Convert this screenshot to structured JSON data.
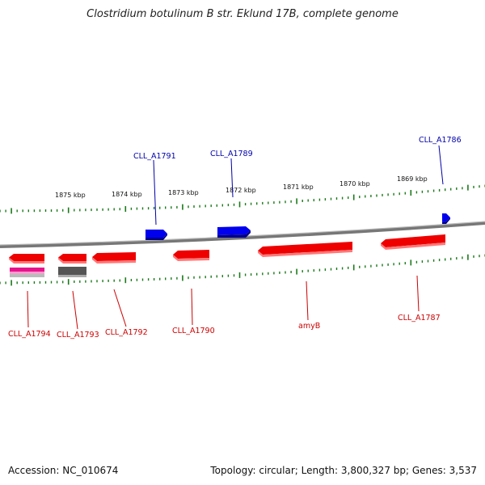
{
  "title": "Clostridium botulinum B str. Eklund 17B, complete genome",
  "footer": {
    "accession": "Accession: NC_010674",
    "info": "Topology: circular; Length: 3,800,327 bp; Genes: 3,537"
  },
  "colors": {
    "forward_gene": "#0000ee",
    "reverse_gene": "#ee0000",
    "backbone": "#888888",
    "ticks": "#1a7a1a",
    "forward_label": "#0000aa",
    "reverse_label": "#cc0000"
  },
  "scale_labels": [
    "1875 kbp",
    "1874 kbp",
    "1873 kbp",
    "1872 kbp",
    "1871 kbp",
    "1870 kbp",
    "1869 kbp"
  ],
  "genes": {
    "forward": [
      {
        "label": "CLL_A1791"
      },
      {
        "label": "CLL_A1789"
      },
      {
        "label": "CLL_A1786"
      }
    ],
    "reverse": [
      {
        "label": "CLL_A1794"
      },
      {
        "label": "CLL_A1793"
      },
      {
        "label": "CLL_A1792"
      },
      {
        "label": "CLL_A1790"
      },
      {
        "label": "amyB"
      },
      {
        "label": "CLL_A1787"
      }
    ]
  }
}
